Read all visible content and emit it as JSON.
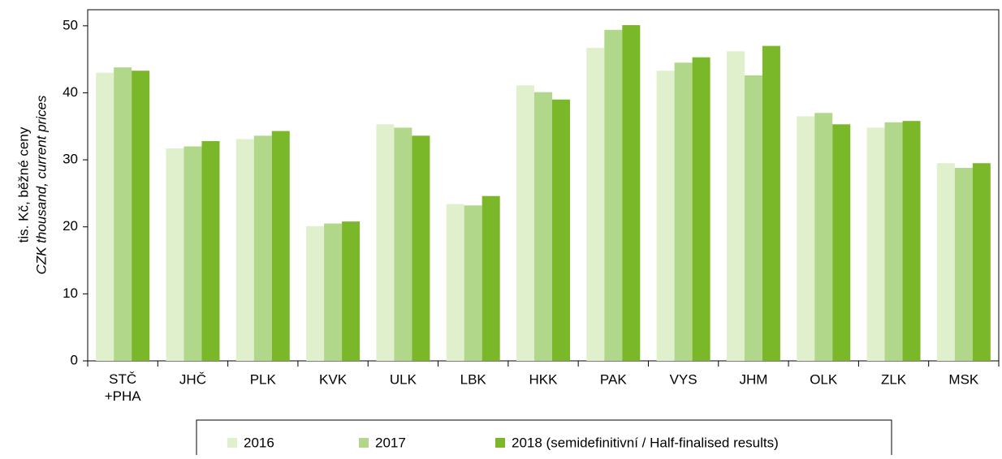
{
  "chart_data": {
    "type": "bar",
    "ylabel": [
      "tis. Kč, běžné ceny",
      "CZK thousand, current prices"
    ],
    "categories": [
      "STČ\n+PHA",
      "JHČ",
      "PLK",
      "KVK",
      "ULK",
      "LBK",
      "HKK",
      "PAK",
      "VYS",
      "JHM",
      "OLK",
      "ZLK",
      "MSK"
    ],
    "series": [
      {
        "name": "2016",
        "color": "#e0efcc",
        "values": [
          43.0,
          31.7,
          33.1,
          20.1,
          35.3,
          23.4,
          41.1,
          46.7,
          43.3,
          46.2,
          36.5,
          34.8,
          29.5
        ]
      },
      {
        "name": "2017",
        "color": "#b1d88a",
        "values": [
          43.8,
          32.0,
          33.6,
          20.5,
          34.8,
          23.2,
          40.1,
          49.4,
          44.5,
          42.6,
          37.0,
          35.6,
          28.8
        ]
      },
      {
        "name": "2018 (semidefinitivní / Half-finalised results)",
        "color": "#7ab829",
        "values": [
          43.3,
          32.8,
          34.3,
          20.8,
          33.6,
          24.6,
          39.0,
          50.1,
          45.3,
          47.0,
          35.3,
          35.8,
          29.5
        ]
      }
    ],
    "ylim": [
      0,
      52.4
    ],
    "yticks": [
      0,
      10,
      20,
      30,
      40,
      50
    ],
    "grid": false,
    "legend": "bottom"
  }
}
